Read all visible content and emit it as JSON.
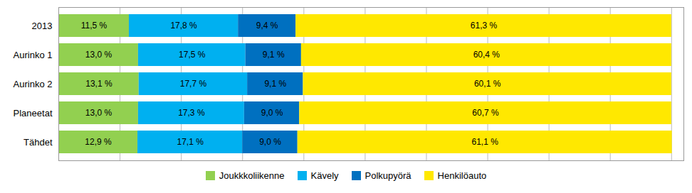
{
  "chart_data": {
    "type": "bar",
    "orientation": "horizontal",
    "stacked": true,
    "categories": [
      "2013",
      "Aurinko 1",
      "Aurinko 2",
      "Planeetat",
      "Tähdet"
    ],
    "series": [
      {
        "name": "Joukkkoliikenne",
        "color": "#92D050",
        "values": [
          11.5,
          13.0,
          13.1,
          13.0,
          12.9
        ],
        "value_labels": [
          "11,5 %",
          "13,0 %",
          "13,1 %",
          "13,0 %",
          "12,9 %"
        ]
      },
      {
        "name": "Kävely",
        "color": "#00B0F0",
        "values": [
          17.8,
          17.5,
          17.7,
          17.3,
          17.1
        ],
        "value_labels": [
          "17,8 %",
          "17,5 %",
          "17,7 %",
          "17,3 %",
          "17,1 %"
        ]
      },
      {
        "name": "Polkupyörä",
        "color": "#0070C0",
        "values": [
          9.4,
          9.1,
          9.1,
          9.0,
          9.0
        ],
        "value_labels": [
          "9,4 %",
          "9,1 %",
          "9,1 %",
          "9,0 %",
          "9,0 %"
        ]
      },
      {
        "name": "Henkilöauto",
        "color": "#FFE800",
        "values": [
          61.3,
          60.4,
          60.1,
          60.7,
          61.1
        ],
        "value_labels": [
          "61,3 %",
          "60,4 %",
          "60,1 %",
          "60,7 %",
          "61,1 %"
        ]
      }
    ],
    "xlim": [
      0,
      102
    ],
    "xticks": [
      0,
      10,
      20,
      30,
      40,
      50,
      60,
      70,
      80,
      90,
      100
    ],
    "tick_labels": "y",
    "grid": true,
    "data_labels": true,
    "legend": "bottom"
  }
}
